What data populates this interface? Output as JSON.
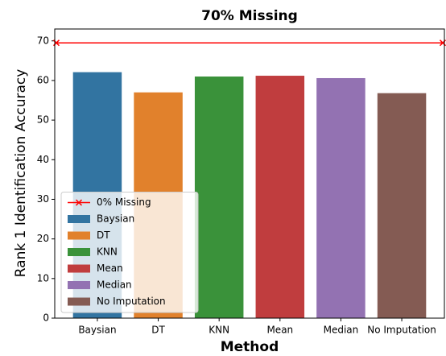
{
  "chart_data": {
    "type": "bar",
    "title": "70% Missing",
    "x_label": "Method",
    "y_label": "Rank 1 Identification Accuracy",
    "categories": [
      "Baysian",
      "DT",
      "KNN",
      "Mean",
      "Median",
      "No Imputation"
    ],
    "values": [
      62.1,
      57.0,
      61.0,
      61.2,
      60.6,
      56.8
    ],
    "colors": [
      "#3274a1",
      "#e1812c",
      "#3a923a",
      "#c03d3e",
      "#9372b2",
      "#845b53"
    ],
    "reference_line": {
      "name": "0% Missing",
      "value": 69.5,
      "color": "#ff0000"
    },
    "ylim": [
      0,
      73
    ],
    "yticks": [
      0,
      10,
      20,
      30,
      40,
      50,
      60,
      70
    ],
    "legend": "lower left"
  }
}
